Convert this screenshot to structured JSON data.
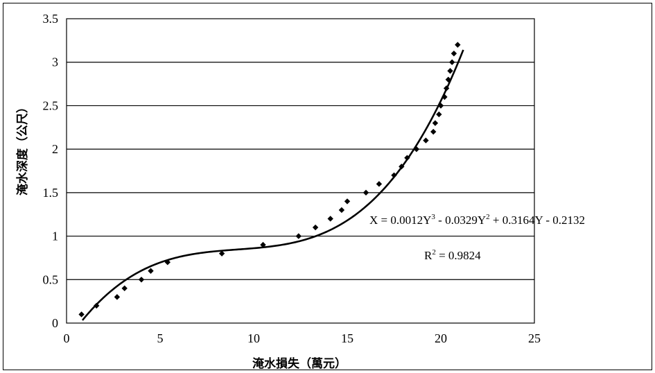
{
  "chart_data": {
    "type": "scatter",
    "title": "",
    "xlabel": "淹水損失（萬元）",
    "ylabel": "淹水深度（公尺）",
    "xlim": [
      0,
      25
    ],
    "ylim": [
      0,
      3.5
    ],
    "x_ticks": [
      "0",
      "5",
      "10",
      "15",
      "20",
      "25"
    ],
    "y_ticks": [
      "0",
      "0.5",
      "1",
      "1.5",
      "2",
      "2.5",
      "3",
      "3.5"
    ],
    "grid": "horizontal",
    "series": [
      {
        "marker": "diamond",
        "points": [
          [
            0.8,
            0.1
          ],
          [
            1.6,
            0.2
          ],
          [
            2.7,
            0.3
          ],
          [
            3.1,
            0.4
          ],
          [
            4.0,
            0.5
          ],
          [
            4.5,
            0.6
          ],
          [
            5.4,
            0.7
          ],
          [
            8.3,
            0.8
          ],
          [
            10.5,
            0.9
          ],
          [
            12.4,
            1.0
          ],
          [
            13.3,
            1.1
          ],
          [
            14.1,
            1.2
          ],
          [
            14.7,
            1.3
          ],
          [
            15.0,
            1.4
          ],
          [
            16.0,
            1.5
          ],
          [
            16.7,
            1.6
          ],
          [
            17.5,
            1.7
          ],
          [
            17.9,
            1.8
          ],
          [
            18.2,
            1.9
          ],
          [
            18.7,
            2.0
          ],
          [
            19.2,
            2.1
          ],
          [
            19.6,
            2.2
          ],
          [
            19.7,
            2.3
          ],
          [
            19.9,
            2.4
          ],
          [
            20.0,
            2.5
          ],
          [
            20.2,
            2.6
          ],
          [
            20.3,
            2.7
          ],
          [
            20.4,
            2.8
          ],
          [
            20.5,
            2.9
          ],
          [
            20.6,
            3.0
          ],
          [
            20.7,
            3.1
          ],
          [
            20.9,
            3.2
          ]
        ]
      },
      {
        "line": "polynomial-fit",
        "coefficients": {
          "a3": 0.0012,
          "a2": -0.0329,
          "a1": 0.3164,
          "a0": -0.2132
        },
        "x_range": [
          0.85,
          21.2
        ]
      }
    ],
    "annotations": {
      "equation_prefix": "X = 0.0012Y",
      "equation_exp3": "3",
      "equation_mid1": " - 0.0329Y",
      "equation_exp2": "2",
      "equation_suffix": " + 0.3164Y - 0.2132",
      "r2_prefix": "R",
      "r2_exp": "2",
      "r2_suffix": " = 0.9824"
    }
  }
}
